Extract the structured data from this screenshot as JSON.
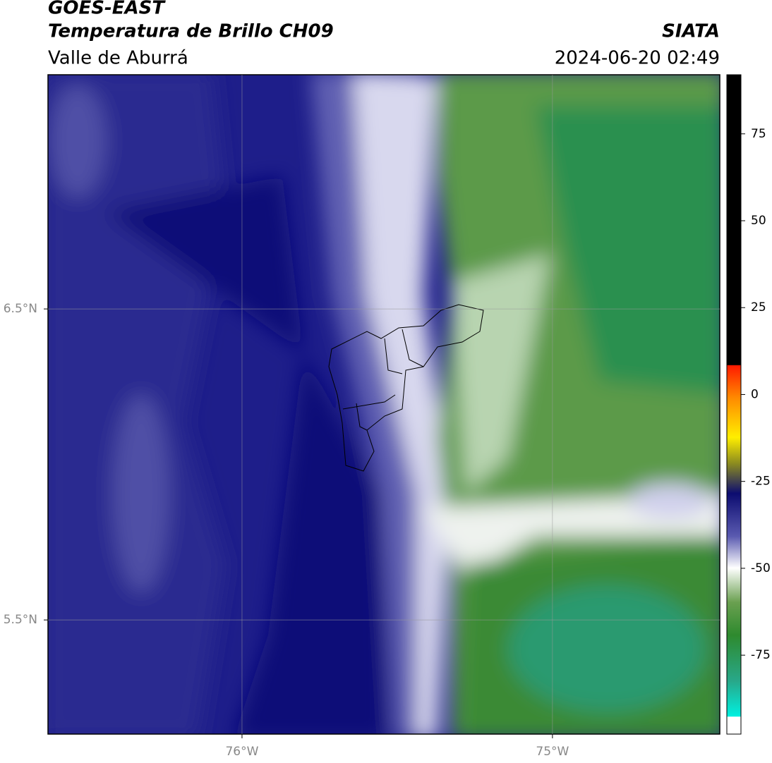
{
  "header": {
    "satellite": "GOES-EAST",
    "product": "Temperatura de Brillo CH09",
    "region": "Valle de Aburrá",
    "source": "SIATA",
    "timestamp": "2024-06-20 02:49"
  },
  "map": {
    "lon_range": [
      -76.625,
      -74.461
    ],
    "lat_range": [
      5.133,
      7.253
    ],
    "lon_ticks": [
      {
        "value": -76,
        "label": "76°W"
      },
      {
        "value": -75,
        "label": "75°W"
      }
    ],
    "lat_ticks": [
      {
        "value": 6.5,
        "label": "6.5°N"
      },
      {
        "value": 5.5,
        "label": "5.5°N"
      }
    ]
  },
  "colorbar": {
    "range": [
      -97.7,
      92
    ],
    "ticks": [
      75,
      50,
      25,
      0,
      -25,
      -50,
      -75
    ]
  }
}
